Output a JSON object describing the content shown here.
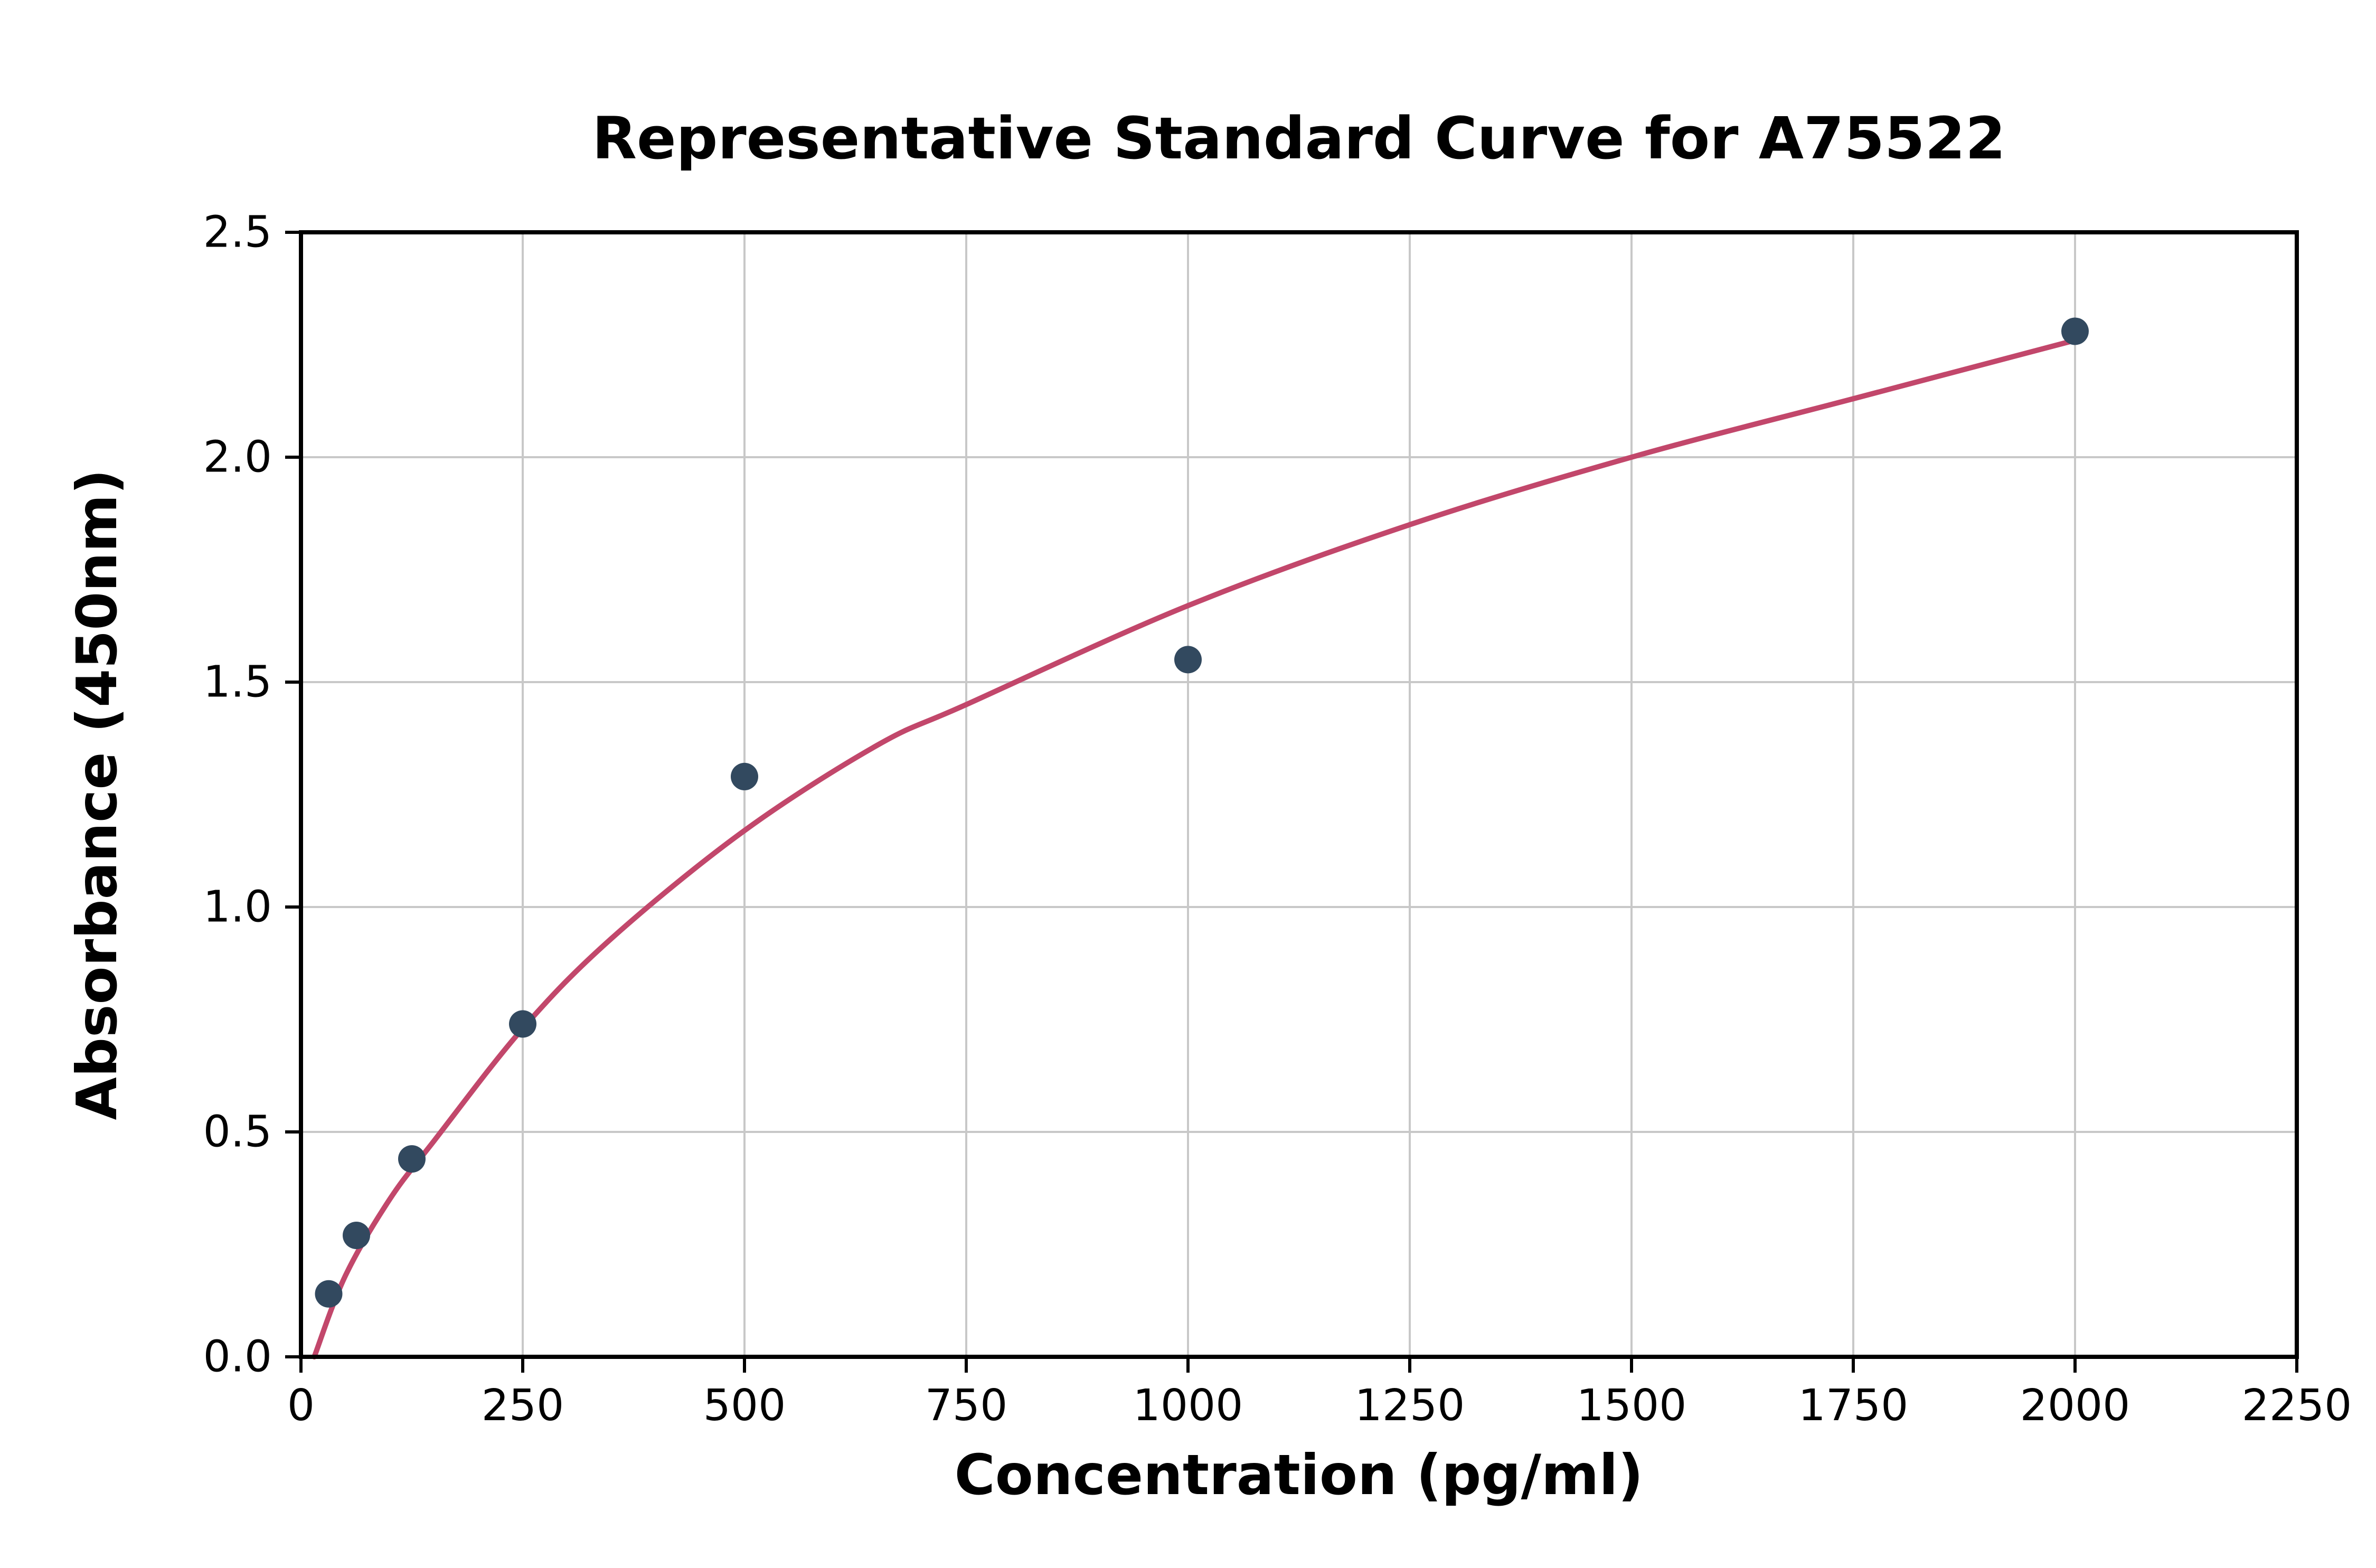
{
  "chart_data": {
    "type": "scatter",
    "title": "Representative Standard Curve for A75522",
    "xlabel": "Concentration (pg/ml)",
    "ylabel": "Absorbance (450nm)",
    "xlim": [
      0,
      2250
    ],
    "ylim": [
      0,
      2.5
    ],
    "x_ticks": [
      0,
      250,
      500,
      750,
      1000,
      1250,
      1500,
      1750,
      2000,
      2250
    ],
    "x_tick_labels": [
      "0",
      "250",
      "500",
      "750",
      "1000",
      "1250",
      "1500",
      "1750",
      "2000",
      "2250"
    ],
    "y_ticks": [
      0,
      0.5,
      1.0,
      1.5,
      2.0,
      2.5
    ],
    "y_tick_labels": [
      "0.0",
      "0.5",
      "1.0",
      "1.5",
      "2.0",
      "2.5"
    ],
    "grid": true,
    "grid_color": "#c8c8c8",
    "axis_color": "#000000",
    "background_color": "#ffffff",
    "points": {
      "x": [
        31.25,
        62.5,
        125,
        250,
        500,
        1000,
        2000
      ],
      "y": [
        0.14,
        0.27,
        0.44,
        0.74,
        1.29,
        1.55,
        2.28
      ],
      "color": "#32495f",
      "marker_radius": 26
    },
    "curve": {
      "x": [
        15,
        50,
        100,
        150,
        250,
        350,
        500,
        650,
        750,
        1000,
        1250,
        1500,
        1750,
        2000
      ],
      "y": [
        0.0,
        0.18,
        0.35,
        0.48,
        0.73,
        0.93,
        1.17,
        1.36,
        1.45,
        1.67,
        1.85,
        2.0,
        2.13,
        2.26
      ],
      "color": "#c2476b",
      "width": 10
    }
  }
}
